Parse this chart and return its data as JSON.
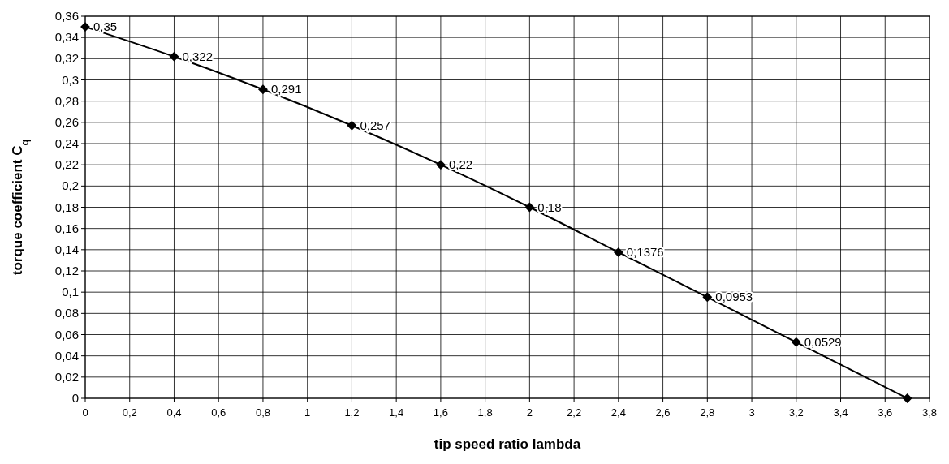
{
  "chart_data": {
    "type": "line",
    "xlabel": "tip speed ratio lambda",
    "ylabel": "torque coefficient C$_{q}$",
    "x": [
      0,
      0.4,
      0.8,
      1.2,
      1.6,
      2,
      2.4,
      2.8,
      3.2,
      3.7
    ],
    "series": [
      {
        "color": "#000000",
        "values": [
          0.35,
          0.322,
          0.291,
          0.257,
          0.22,
          0.18,
          0.1376,
          0.0953,
          0.0529,
          0
        ],
        "value_labels": [
          "0,35",
          "0,322",
          "0,291",
          "0,257",
          "0,22",
          "0,18",
          "0,1376",
          "0,0953",
          "0,0529",
          null
        ]
      }
    ],
    "xlim": [
      0,
      3.8
    ],
    "xticks": [
      0,
      {
        "value": 0.2,
        "label": "0,2"
      },
      {
        "value": 0.4,
        "label": "0,4"
      },
      {
        "value": 0.6,
        "label": "0,6"
      },
      {
        "value": 0.8,
        "label": "0,8"
      },
      1,
      {
        "value": 1.2,
        "label": "1,2"
      },
      {
        "value": 1.4,
        "label": "1,4"
      },
      {
        "value": 1.6,
        "label": "1,6"
      },
      {
        "value": 1.8,
        "label": "1,8"
      },
      2,
      {
        "value": 2.2,
        "label": "2,2"
      },
      {
        "value": 2.4,
        "label": "2,4"
      },
      {
        "value": 2.6,
        "label": "2,6"
      },
      {
        "value": 2.8,
        "label": "2,8"
      },
      3,
      {
        "value": 3.2,
        "label": "3,2"
      },
      {
        "value": 3.4,
        "label": "3,4"
      },
      {
        "value": 3.6,
        "label": "3,6"
      },
      {
        "value": 3.8,
        "label": "3,8"
      }
    ],
    "ylim": [
      0,
      0.36
    ],
    "yticks": [
      0,
      {
        "value": 0.02,
        "label": "0,02"
      },
      {
        "value": 0.04,
        "label": "0,04"
      },
      {
        "value": 0.06,
        "label": "0,06"
      },
      {
        "value": 0.08,
        "label": "0,08"
      },
      {
        "value": 0.1,
        "label": "0,1"
      },
      {
        "value": 0.12,
        "label": "0,12"
      },
      {
        "value": 0.14,
        "label": "0,14"
      },
      {
        "value": 0.16,
        "label": "0,16"
      },
      {
        "value": 0.18,
        "label": "0,18"
      },
      {
        "value": 0.2,
        "label": "0,2"
      },
      {
        "value": 0.22,
        "label": "0,22"
      },
      {
        "value": 0.24,
        "label": "0,24"
      },
      {
        "value": 0.26,
        "label": "0,26"
      },
      {
        "value": 0.28,
        "label": "0,28"
      },
      {
        "value": 0.3,
        "label": "0,3"
      },
      {
        "value": 0.32,
        "label": "0,32"
      },
      {
        "value": 0.34,
        "label": "0,34"
      },
      {
        "value": 0.36,
        "label": "0,36"
      }
    ],
    "grid": true,
    "marker": "diamond",
    "line_style": "solid"
  }
}
